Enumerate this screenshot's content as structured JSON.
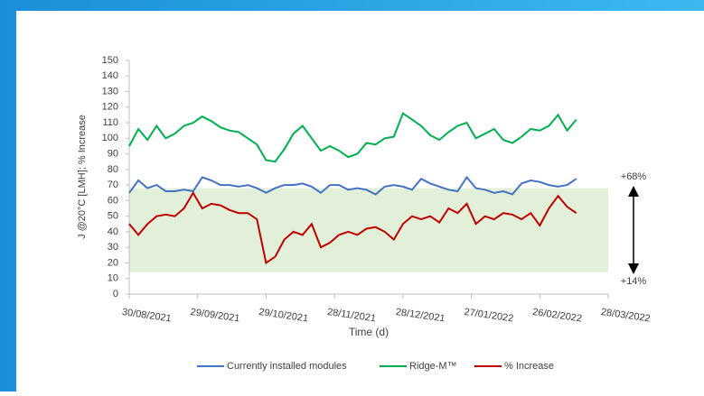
{
  "chart_data": {
    "type": "line",
    "y_label": "J @20°C [LMH]; % Increase",
    "x_label": "Time (d)",
    "x": [
      "30/08/2021",
      "03/09/2021",
      "07/09/2021",
      "11/09/2021",
      "15/09/2021",
      "19/09/2021",
      "23/09/2021",
      "27/09/2021",
      "01/10/2021",
      "05/10/2021",
      "09/10/2021",
      "13/10/2021",
      "17/10/2021",
      "21/10/2021",
      "25/10/2021",
      "29/10/2021",
      "02/11/2021",
      "06/11/2021",
      "10/11/2021",
      "14/11/2021",
      "18/11/2021",
      "22/11/2021",
      "26/11/2021",
      "30/11/2021",
      "04/12/2021",
      "08/12/2021",
      "12/12/2021",
      "16/12/2021",
      "20/12/2021",
      "24/12/2021",
      "28/12/2021",
      "01/01/2022",
      "05/01/2022",
      "09/01/2022",
      "13/01/2022",
      "17/01/2022",
      "21/01/2022",
      "25/01/2022",
      "29/01/2022",
      "02/02/2022",
      "06/02/2022",
      "10/02/2022",
      "14/02/2022",
      "18/02/2022",
      "22/02/2022",
      "26/02/2022",
      "02/03/2022",
      "06/03/2022",
      "10/03/2022",
      "14/03/2022"
    ],
    "series": [
      {
        "name": "Currently installed modules",
        "color": "#4472c4",
        "values": [
          65,
          73,
          68,
          70,
          66,
          66,
          67,
          66,
          75,
          73,
          70,
          70,
          69,
          70,
          68,
          65,
          68,
          70,
          70,
          71,
          69,
          65,
          70,
          70,
          67,
          68,
          67,
          64,
          69,
          70,
          69,
          67,
          74,
          71,
          69,
          67,
          66,
          75,
          68,
          67,
          65,
          66,
          64,
          71,
          73,
          72,
          70,
          69,
          70,
          74
        ]
      },
      {
        "name": "Ridge-M™",
        "color": "#00b050",
        "values": [
          95,
          106,
          99,
          108,
          100,
          103,
          108,
          110,
          114,
          111,
          107,
          105,
          104,
          100,
          96,
          86,
          85,
          93,
          103,
          108,
          100,
          92,
          95,
          92,
          88,
          90,
          97,
          96,
          100,
          101,
          116,
          112,
          108,
          102,
          99,
          104,
          108,
          110,
          100,
          103,
          106,
          99,
          97,
          101,
          106,
          105,
          108,
          115,
          105,
          112
        ]
      },
      {
        "name": "% Increase",
        "color": "#c00000",
        "values": [
          45,
          38,
          45,
          50,
          51,
          50,
          55,
          65,
          55,
          58,
          57,
          54,
          52,
          52,
          48,
          20,
          24,
          35,
          40,
          38,
          45,
          30,
          33,
          38,
          40,
          38,
          42,
          43,
          40,
          35,
          45,
          50,
          48,
          50,
          46,
          55,
          52,
          58,
          45,
          50,
          48,
          52,
          51,
          48,
          52,
          44,
          55,
          63,
          56,
          52
        ]
      }
    ],
    "xlim": [
      "30/08/2021",
      "28/03/2022"
    ],
    "xticks": [
      "30/08/2021",
      "29/09/2021",
      "29/10/2021",
      "28/11/2021",
      "28/12/2021",
      "27/01/2022",
      "26/02/2022",
      "28/03/2022"
    ],
    "ylim": [
      0,
      150
    ],
    "yticks": [
      0,
      10,
      20,
      30,
      40,
      50,
      60,
      70,
      80,
      90,
      100,
      110,
      120,
      130,
      140,
      150
    ],
    "shaded_range": [
      14,
      68
    ],
    "shaded_color": "#e2f0d9",
    "annotations": [
      "+68%",
      "+14%"
    ]
  }
}
